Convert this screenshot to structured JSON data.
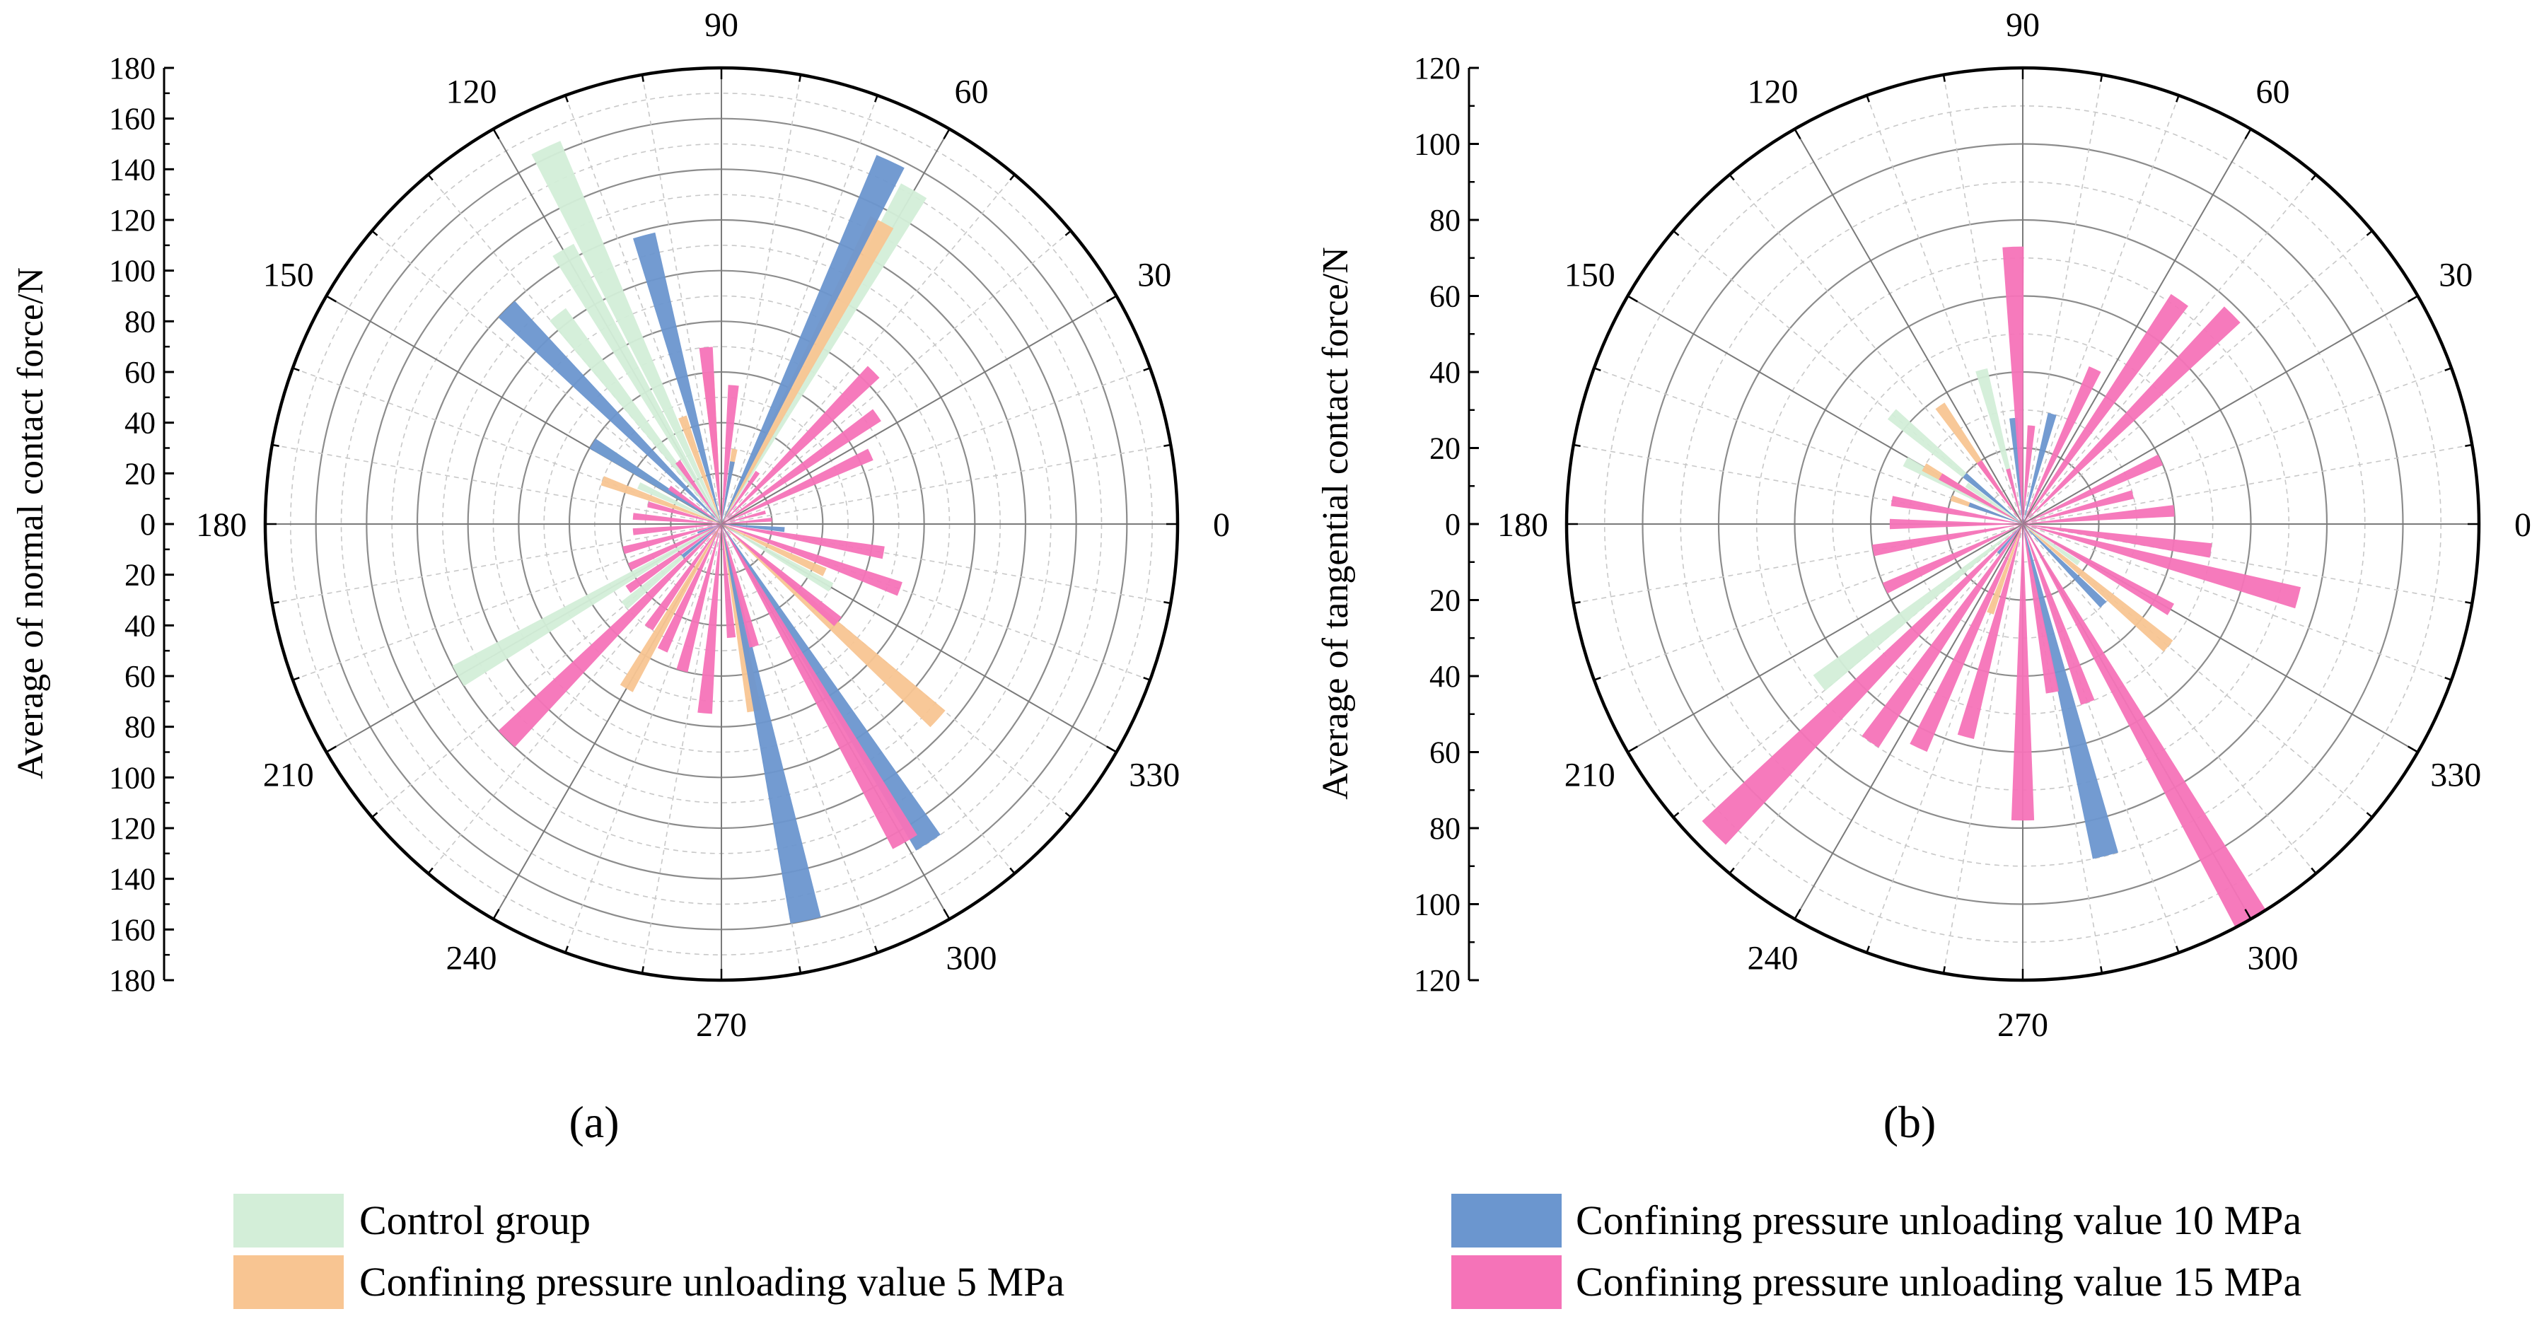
{
  "colors": {
    "control": "#d3eed8",
    "p5": "#f8c592",
    "p10": "#6b96cf",
    "p15": "#f573b8"
  },
  "legend": {
    "items": [
      {
        "key": "control",
        "label": "Control group"
      },
      {
        "key": "p5",
        "label": "Confining pressure unloading value 5 MPa"
      },
      {
        "key": "p10",
        "label": "Confining pressure unloading value 10 MPa"
      },
      {
        "key": "p15",
        "label": "Confining pressure unloading value 15 MPa"
      }
    ]
  },
  "chart_data": [
    {
      "type": "polar-bar",
      "panel_label": "(a)",
      "ylabel": "Average of normal contact force/N",
      "rmax": 180,
      "r_ticks": [
        180,
        160,
        140,
        120,
        100,
        80,
        60,
        40,
        20,
        0,
        20,
        40,
        60,
        80,
        100,
        120,
        140,
        160,
        180
      ],
      "angle_labels": [
        "0",
        "30",
        "60",
        "90",
        "120",
        "150",
        "180",
        "210",
        "240",
        "270",
        "300",
        "330"
      ],
      "series": [
        {
          "name": "Control group",
          "color_key": "control",
          "bars": [
            {
              "angle": 60,
              "value": 152
            },
            {
              "angle": 115,
              "value": 164
            },
            {
              "angle": 120,
              "value": 125
            },
            {
              "angle": 128,
              "value": 105
            },
            {
              "angle": 148,
              "value": 58
            },
            {
              "angle": 155,
              "value": 36
            },
            {
              "angle": 210,
              "value": 120
            },
            {
              "angle": 220,
              "value": 50
            },
            {
              "angle": 330,
              "value": 50
            }
          ]
        },
        {
          "name": "Confining pressure unloading value 5 MPa",
          "color_key": "p5",
          "bars": [
            {
              "angle": 62,
              "value": 135
            },
            {
              "angle": 80,
              "value": 30
            },
            {
              "angle": 95,
              "value": 60
            },
            {
              "angle": 110,
              "value": 45
            },
            {
              "angle": 160,
              "value": 50
            },
            {
              "angle": 240,
              "value": 75
            },
            {
              "angle": 280,
              "value": 75
            },
            {
              "angle": 318,
              "value": 115
            },
            {
              "angle": 335,
              "value": 45
            }
          ]
        },
        {
          "name": "Confining pressure unloading value 10 MPa",
          "color_key": "p10",
          "bars": [
            {
              "angle": 65,
              "value": 158
            },
            {
              "angle": 105,
              "value": 118
            },
            {
              "angle": 135,
              "value": 120
            },
            {
              "angle": 148,
              "value": 60
            },
            {
              "angle": 200,
              "value": 10
            },
            {
              "angle": 220,
              "value": 20
            },
            {
              "angle": 282,
              "value": 160
            },
            {
              "angle": 303,
              "value": 150
            },
            {
              "angle": 355,
              "value": 25
            },
            {
              "angle": 80,
              "value": 25
            }
          ]
        },
        {
          "name": "Confining pressure unloading value 15 MPa",
          "color_key": "p15",
          "bars": [
            {
              "angle": 5,
              "value": 20
            },
            {
              "angle": 15,
              "value": 18
            },
            {
              "angle": 25,
              "value": 65
            },
            {
              "angle": 35,
              "value": 75
            },
            {
              "angle": 45,
              "value": 85
            },
            {
              "angle": 55,
              "value": 25
            },
            {
              "angle": 85,
              "value": 55
            },
            {
              "angle": 95,
              "value": 70
            },
            {
              "angle": 125,
              "value": 30
            },
            {
              "angle": 145,
              "value": 25
            },
            {
              "angle": 165,
              "value": 30
            },
            {
              "angle": 175,
              "value": 35
            },
            {
              "angle": 185,
              "value": 35
            },
            {
              "angle": 195,
              "value": 40
            },
            {
              "angle": 205,
              "value": 40
            },
            {
              "angle": 215,
              "value": 45
            },
            {
              "angle": 225,
              "value": 120
            },
            {
              "angle": 235,
              "value": 50
            },
            {
              "angle": 245,
              "value": 55
            },
            {
              "angle": 255,
              "value": 60
            },
            {
              "angle": 265,
              "value": 75
            },
            {
              "angle": 275,
              "value": 45
            },
            {
              "angle": 285,
              "value": 50
            },
            {
              "angle": 300,
              "value": 145
            },
            {
              "angle": 320,
              "value": 60
            },
            {
              "angle": 340,
              "value": 75
            },
            {
              "angle": 350,
              "value": 65
            }
          ]
        }
      ]
    },
    {
      "type": "polar-bar",
      "panel_label": "(b)",
      "ylabel": "Average of tangential contact force/N",
      "rmax": 120,
      "r_ticks": [
        120,
        100,
        80,
        60,
        40,
        20,
        0,
        20,
        40,
        60,
        80,
        100,
        120
      ],
      "angle_labels": [
        "0",
        "30",
        "60",
        "90",
        "120",
        "150",
        "180",
        "210",
        "240",
        "270",
        "300",
        "330"
      ],
      "series": [
        {
          "name": "Control group",
          "color_key": "control",
          "bars": [
            {
              "angle": 105,
              "value": 42
            },
            {
              "angle": 140,
              "value": 45
            },
            {
              "angle": 152,
              "value": 35
            },
            {
              "angle": 145,
              "value": 18
            },
            {
              "angle": 218,
              "value": 68
            },
            {
              "angle": 325,
              "value": 18
            }
          ]
        },
        {
          "name": "Confining pressure unloading value 5 MPa",
          "color_key": "p5",
          "bars": [
            {
              "angle": 125,
              "value": 38
            },
            {
              "angle": 150,
              "value": 30
            },
            {
              "angle": 160,
              "value": 20
            },
            {
              "angle": 250,
              "value": 25
            },
            {
              "angle": 320,
              "value": 50
            }
          ]
        },
        {
          "name": "Confining pressure unloading value 10 MPa",
          "color_key": "p10",
          "bars": [
            {
              "angle": 75,
              "value": 30
            },
            {
              "angle": 95,
              "value": 28
            },
            {
              "angle": 140,
              "value": 20
            },
            {
              "angle": 160,
              "value": 15
            },
            {
              "angle": 230,
              "value": 10
            },
            {
              "angle": 284,
              "value": 90
            },
            {
              "angle": 315,
              "value": 30
            }
          ]
        },
        {
          "name": "Confining pressure unloading value 15 MPa",
          "color_key": "p15",
          "bars": [
            {
              "angle": 5,
              "value": 40
            },
            {
              "angle": 15,
              "value": 30
            },
            {
              "angle": 25,
              "value": 40
            },
            {
              "angle": 45,
              "value": 78
            },
            {
              "angle": 55,
              "value": 72
            },
            {
              "angle": 65,
              "value": 45
            },
            {
              "angle": 85,
              "value": 26
            },
            {
              "angle": 92,
              "value": 73
            },
            {
              "angle": 105,
              "value": 15
            },
            {
              "angle": 125,
              "value": 20
            },
            {
              "angle": 150,
              "value": 25
            },
            {
              "angle": 170,
              "value": 35
            },
            {
              "angle": 180,
              "value": 35
            },
            {
              "angle": 190,
              "value": 40
            },
            {
              "angle": 205,
              "value": 40
            },
            {
              "angle": 225,
              "value": 115
            },
            {
              "angle": 235,
              "value": 70
            },
            {
              "angle": 245,
              "value": 65
            },
            {
              "angle": 255,
              "value": 58
            },
            {
              "angle": 270,
              "value": 78
            },
            {
              "angle": 280,
              "value": 45
            },
            {
              "angle": 290,
              "value": 50
            },
            {
              "angle": 300,
              "value": 120
            },
            {
              "angle": 330,
              "value": 45
            },
            {
              "angle": 345,
              "value": 75
            },
            {
              "angle": 352,
              "value": 50
            }
          ]
        }
      ]
    }
  ]
}
